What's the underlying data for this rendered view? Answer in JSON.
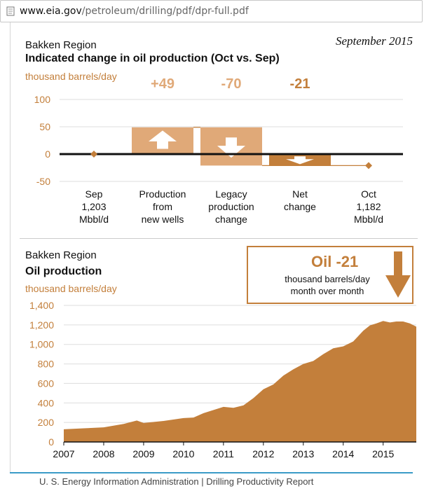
{
  "browser": {
    "url_host": "www.eia.gov",
    "url_path": "/petroleum/drilling/pdf/dpr-full.pdf"
  },
  "top_panel": {
    "subtitle": "Bakken Region",
    "title": "Indicated change in oil production (Oct vs. Sep)",
    "units": "thousand barrels/day",
    "date": "September 2015"
  },
  "bottom_panel": {
    "subtitle": "Bakken Region",
    "title": "Oil production",
    "units": "thousand barrels/day",
    "callout": {
      "headline": "Oil -21",
      "line1": "thousand barrels/day",
      "line2": "month over month"
    }
  },
  "footer": {
    "text": "U. S. Energy Information Administration  |  Drilling Productivity Report"
  },
  "colors": {
    "accent": "#c37f3b",
    "accent_light": "#e0a978",
    "axis": "#111111"
  },
  "chart_data": [
    {
      "type": "bar",
      "subtype": "waterfall",
      "title": "Indicated change in oil production (Oct vs. Sep)",
      "ylabel": "thousand barrels/day",
      "ylim": [
        -50,
        100
      ],
      "yticks": [
        "100",
        "50",
        "0",
        "-50"
      ],
      "grid": true,
      "categories": [
        "Sep\n1,203\nMbbl/d",
        "Production\nfrom\nnew wells",
        "Legacy\nproduction\nchange",
        "Net\nchange",
        "Oct\n1,182\nMbbl/d"
      ],
      "steps": [
        {
          "category": "Production\nfrom\nnew wells",
          "from": 0,
          "to": 49,
          "label": "+49",
          "direction": "up"
        },
        {
          "category": "Legacy\nproduction\nchange",
          "from": 49,
          "to": -21,
          "label": "-70",
          "direction": "down"
        },
        {
          "category": "Net\nchange",
          "from": 0,
          "to": -21,
          "label": "-21",
          "direction": "down"
        }
      ],
      "endpoints": [
        {
          "category": "Sep\n1,203\nMbbl/d",
          "value": 0
        },
        {
          "category": "Oct\n1,182\nMbbl/d",
          "value": -21
        }
      ]
    },
    {
      "type": "area",
      "title": "Oil production",
      "ylabel": "thousand barrels/day",
      "xlim": [
        2007,
        2015.83
      ],
      "ylim": [
        0,
        1400
      ],
      "yticks": [
        "0",
        "200",
        "400",
        "600",
        "800",
        "1,000",
        "1,200",
        "1,400"
      ],
      "xticks": [
        "2007",
        "2008",
        "2009",
        "2010",
        "2011",
        "2012",
        "2013",
        "2014",
        "2015"
      ],
      "grid": true,
      "series": [
        {
          "x": [
            2007.0,
            2007.5,
            2008.0,
            2008.5,
            2008.83,
            2009.0,
            2009.5,
            2010.0,
            2010.25,
            2010.5,
            2011.0,
            2011.25,
            2011.5,
            2011.75,
            2012.0,
            2012.25,
            2012.5,
            2012.75,
            2013.0,
            2013.25,
            2013.5,
            2013.75,
            2014.0,
            2014.25,
            2014.5,
            2014.67,
            2014.83,
            2015.0,
            2015.17,
            2015.33,
            2015.5,
            2015.67,
            2015.83
          ],
          "values": [
            130,
            140,
            150,
            185,
            220,
            195,
            215,
            245,
            250,
            295,
            360,
            350,
            375,
            450,
            540,
            590,
            680,
            745,
            800,
            830,
            900,
            960,
            980,
            1030,
            1140,
            1195,
            1215,
            1240,
            1225,
            1235,
            1235,
            1215,
            1182
          ]
        }
      ]
    }
  ]
}
